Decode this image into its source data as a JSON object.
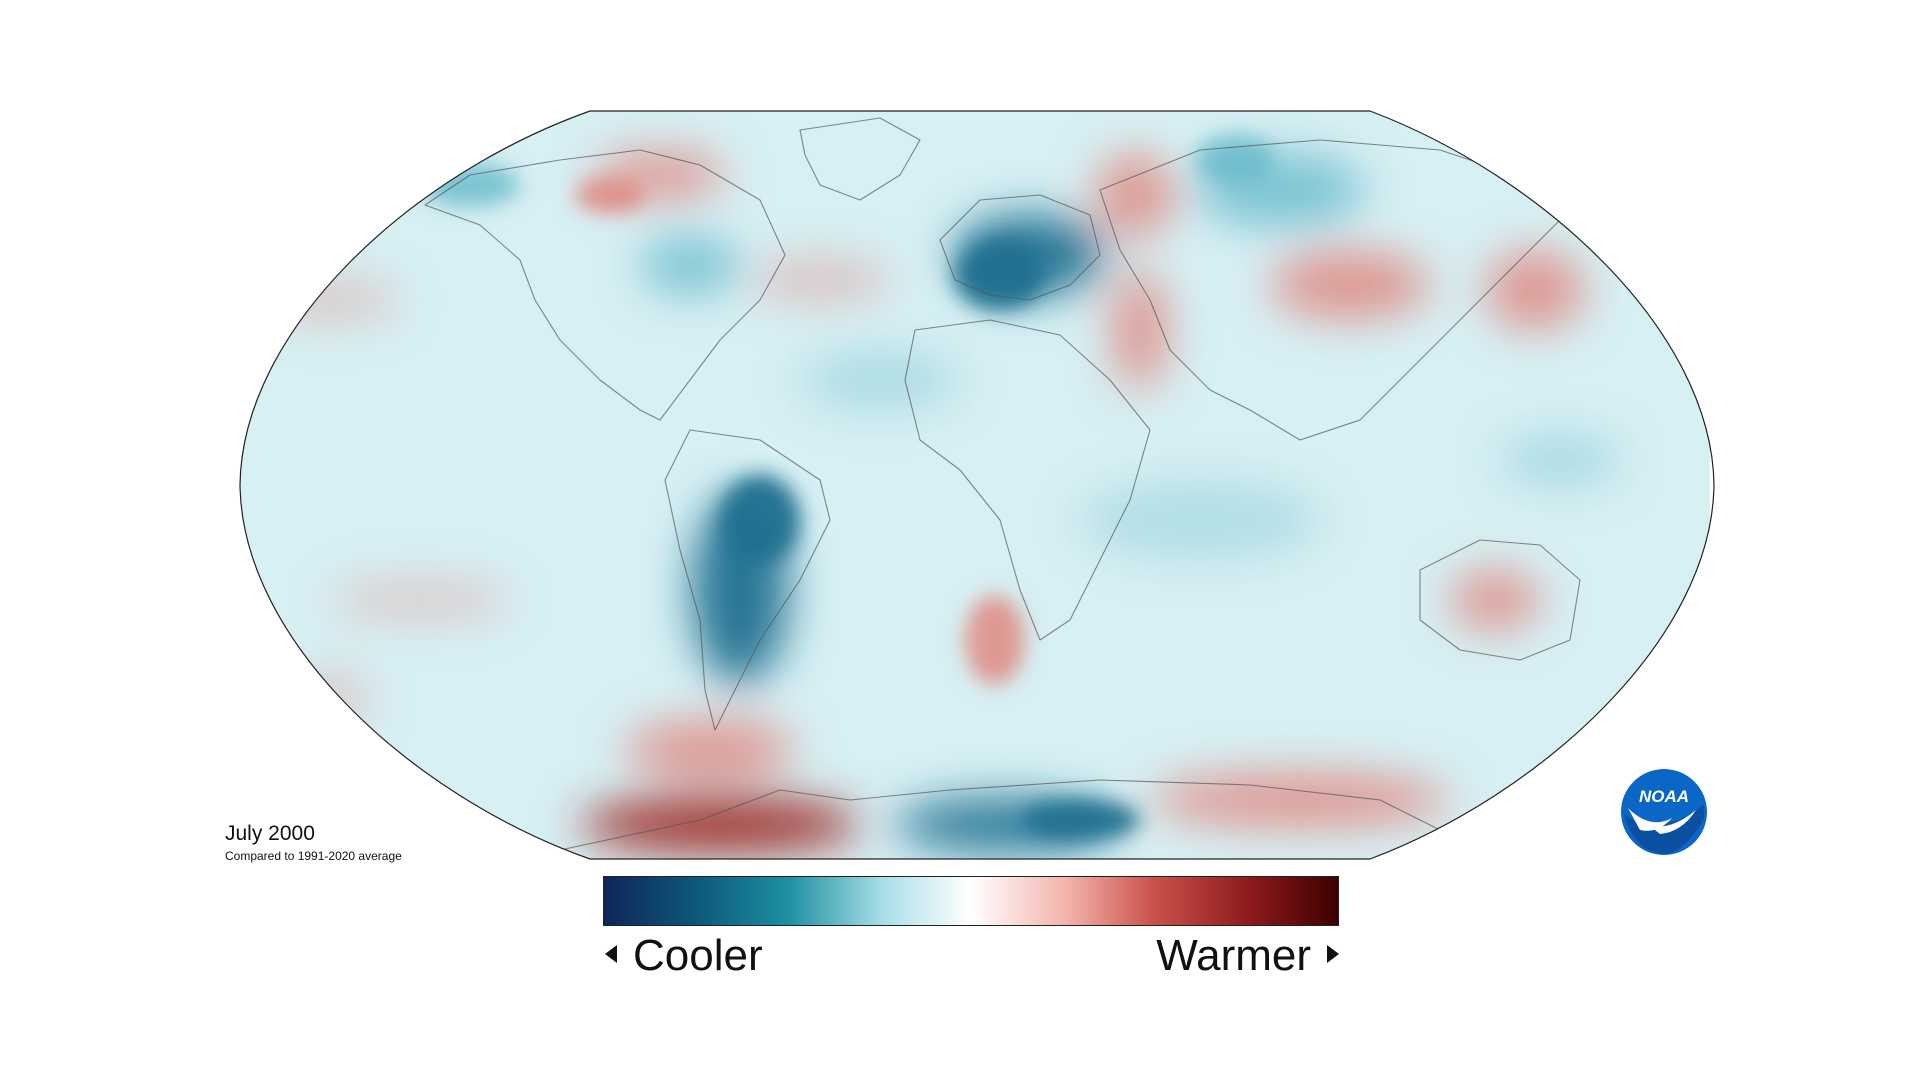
{
  "map": {
    "title": "July 2000",
    "subtitle": "Compared to 1991-2020 average",
    "projection": "robinson",
    "anomaly_regions": [
      {
        "name": "central-south-america",
        "tone": "cool-strong"
      },
      {
        "name": "europe",
        "tone": "cool-strong"
      },
      {
        "name": "west-antarctica",
        "tone": "cool-strong"
      },
      {
        "name": "eastern-siberia",
        "tone": "cool"
      },
      {
        "name": "eastern-canada",
        "tone": "cool"
      },
      {
        "name": "northern-canada",
        "tone": "warm"
      },
      {
        "name": "western-russia",
        "tone": "warm"
      },
      {
        "name": "middle-east",
        "tone": "warm"
      },
      {
        "name": "central-asia",
        "tone": "warm"
      },
      {
        "name": "northeast-china",
        "tone": "warm"
      },
      {
        "name": "australia",
        "tone": "warm"
      },
      {
        "name": "southern-ocean-atlantic",
        "tone": "warm"
      },
      {
        "name": "east-antarctica",
        "tone": "warm"
      },
      {
        "name": "antarctic-peninsula-coast",
        "tone": "warm-strong"
      }
    ]
  },
  "legend": {
    "cooler_label": "Cooler",
    "warmer_label": "Warmer",
    "gradient": [
      "#0f2559",
      "#0e5a7c",
      "#1c8fa0",
      "#a9dfe7",
      "#ffffff",
      "#f3b3ab",
      "#c9514a",
      "#8e1a1d",
      "#3d0000"
    ]
  },
  "colors": {
    "cool_strong": "#1f6f8e",
    "cool": "#5fb6c7",
    "base": "#d7f0f4",
    "warm": "#e07b72",
    "warm_strong": "#9e2a27",
    "coast": "#555555"
  },
  "logo": {
    "text": "NOAA",
    "color": "#0a67c7"
  }
}
